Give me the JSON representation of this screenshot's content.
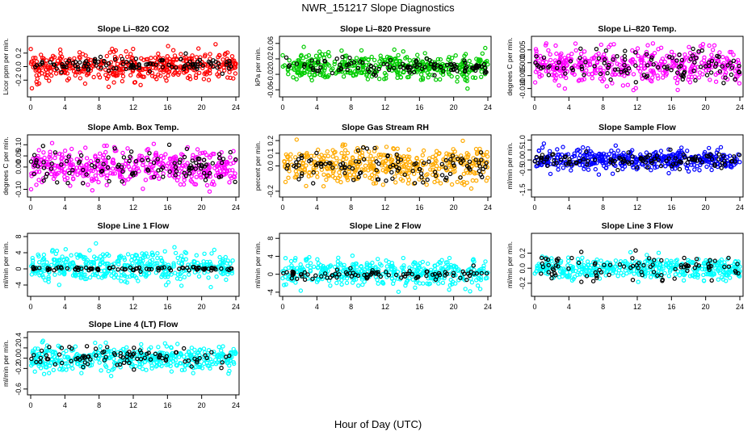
{
  "figure": {
    "title": "NWR_151217  Slope Diagnostics",
    "xlabel": "Hour of Day (UTC)"
  },
  "chart_data": [
    {
      "type": "scatter",
      "title": "Slope Li–820 CO2",
      "ylabel": "Licor ppm per min.",
      "xlim": [
        0,
        24
      ],
      "ylim": [
        -0.4,
        0.4
      ],
      "xticks": [
        0,
        4,
        8,
        12,
        16,
        20,
        24
      ],
      "yticks": [
        -0.2,
        0.0,
        0.2
      ],
      "ytick_labels": [
        "-0.2",
        "0.0",
        "0.2"
      ],
      "series": [
        {
          "color": "#ff0000",
          "seed": 11,
          "count": 430,
          "center": 0.0,
          "spread": 0.11,
          "clip": [
            -0.38,
            0.38
          ]
        },
        {
          "color": "#000000",
          "seed": 12,
          "count": 110,
          "center": 0.02,
          "spread": 0.05,
          "clip": [
            -0.2,
            0.2
          ]
        }
      ]
    },
    {
      "type": "scatter",
      "title": "Slope Li–820 Pressure",
      "ylabel": "kPa per min.",
      "xlim": [
        0,
        24
      ],
      "ylim": [
        -0.07,
        0.07
      ],
      "xticks": [
        0,
        4,
        8,
        12,
        16,
        20,
        24
      ],
      "yticks": [
        -0.06,
        -0.02,
        0.02,
        0.06
      ],
      "ytick_labels": [
        "-0.06",
        "-0.02",
        "0.02",
        "0.06"
      ],
      "series": [
        {
          "color": "#00cc00",
          "seed": 21,
          "count": 430,
          "center": 0.0,
          "spread": 0.017,
          "clip": [
            -0.065,
            0.065
          ]
        },
        {
          "color": "#000000",
          "seed": 22,
          "count": 110,
          "center": 0.0,
          "spread": 0.01,
          "clip": [
            -0.03,
            0.03
          ]
        }
      ]
    },
    {
      "type": "scatter",
      "title": "Slope Li–820 Temp.",
      "ylabel": "degrees C per min.",
      "xlim": [
        0,
        24
      ],
      "ylim": [
        -0.012,
        0.009
      ],
      "xticks": [
        0,
        4,
        8,
        12,
        16,
        20,
        24
      ],
      "yticks": [
        -0.01,
        -0.005,
        0.0,
        0.005
      ],
      "ytick_labels": [
        "-0.010",
        "-0.005",
        "0.000",
        "0.005"
      ],
      "series": [
        {
          "color": "#ff00ff",
          "seed": 31,
          "count": 430,
          "center": -0.001,
          "spread": 0.0035,
          "clip": [
            -0.0115,
            0.0085
          ]
        },
        {
          "color": "#000000",
          "seed": 32,
          "count": 110,
          "center": -0.001,
          "spread": 0.003,
          "clip": [
            -0.009,
            0.006
          ]
        }
      ]
    },
    {
      "type": "scatter",
      "title": "Slope Amb. Box Temp.",
      "ylabel": "degrees C per min.",
      "xlim": [
        0,
        24
      ],
      "ylim": [
        -0.12,
        0.13
      ],
      "xticks": [
        0,
        4,
        8,
        12,
        16,
        20,
        24
      ],
      "yticks": [
        -0.1,
        0.0,
        0.05,
        0.1
      ],
      "ytick_labels": [
        "-0.10",
        "0.00",
        "0.05",
        "0.10"
      ],
      "series": [
        {
          "color": "#ff00ff",
          "seed": 41,
          "count": 430,
          "center": 0.0,
          "spread": 0.04,
          "clip": [
            -0.115,
            0.125
          ]
        },
        {
          "color": "#000000",
          "seed": 42,
          "count": 110,
          "center": 0.0,
          "spread": 0.035,
          "clip": [
            -0.09,
            0.1
          ]
        }
      ]
    },
    {
      "type": "scatter",
      "title": "Slope Gas Stream RH",
      "ylabel": "percent per min.",
      "xlim": [
        0,
        24
      ],
      "ylim": [
        -0.22,
        0.22
      ],
      "xticks": [
        0,
        4,
        8,
        12,
        16,
        20,
        24
      ],
      "yticks": [
        -0.2,
        0.0,
        0.1,
        0.2
      ],
      "ytick_labels": [
        "-0.2",
        "0.0",
        "0.1",
        "0.2"
      ],
      "series": [
        {
          "color": "#ffaa00",
          "seed": 51,
          "count": 430,
          "center": 0.0,
          "spread": 0.07,
          "clip": [
            -0.21,
            0.21
          ]
        },
        {
          "color": "#000000",
          "seed": 52,
          "count": 110,
          "center": 0.0,
          "spread": 0.06,
          "clip": [
            -0.2,
            0.15
          ]
        }
      ]
    },
    {
      "type": "scatter",
      "title": "Slope Sample Flow",
      "ylabel": "ml/min per min.",
      "xlim": [
        0,
        24
      ],
      "ylim": [
        -1.7,
        1.1
      ],
      "xticks": [
        0,
        4,
        8,
        12,
        16,
        20,
        24
      ],
      "yticks": [
        -1.5,
        -0.5,
        0.0,
        0.5,
        1.0
      ],
      "ytick_labels": [
        "-1.5",
        "-0.5",
        "0.0",
        "0.5",
        "1.0"
      ],
      "series": [
        {
          "color": "#0000ff",
          "seed": 61,
          "count": 430,
          "center": 0.0,
          "spread": 0.25,
          "clip": [
            -1.6,
            1.0
          ]
        },
        {
          "color": "#000000",
          "seed": 62,
          "count": 110,
          "center": 0.0,
          "spread": 0.18,
          "clip": [
            -0.6,
            0.6
          ]
        }
      ]
    },
    {
      "type": "scatter",
      "title": "Slope Line 1 Flow",
      "ylabel": "ml/min per min.",
      "xlim": [
        0,
        24
      ],
      "ylim": [
        -6,
        8
      ],
      "xticks": [
        0,
        4,
        8,
        12,
        16,
        20,
        24
      ],
      "yticks": [
        -4,
        0,
        4,
        8
      ],
      "ytick_labels": [
        "-4",
        "0",
        "4",
        "8"
      ],
      "series": [
        {
          "color": "#00ffff",
          "seed": 71,
          "count": 430,
          "center": 0.5,
          "spread": 1.8,
          "clip": [
            -5,
            7.5
          ]
        },
        {
          "color": "#000000",
          "seed": 72,
          "count": 90,
          "center": 0.0,
          "spread": 0.25,
          "clip": [
            -1,
            3
          ]
        }
      ]
    },
    {
      "type": "scatter",
      "title": "Slope Line 2 Flow",
      "ylabel": "ml/min per min.",
      "xlim": [
        0,
        24
      ],
      "ylim": [
        -4.2,
        8.4
      ],
      "xticks": [
        0,
        4,
        8,
        12,
        16,
        20,
        24
      ],
      "yticks": [
        -4,
        0,
        4,
        8
      ],
      "ytick_labels": [
        "-4",
        "0",
        "4",
        "8"
      ],
      "series": [
        {
          "color": "#00ffff",
          "seed": 81,
          "count": 430,
          "center": 0.3,
          "spread": 1.4,
          "clip": [
            -4,
            8
          ]
        },
        {
          "color": "#000000",
          "seed": 82,
          "count": 90,
          "center": 0.0,
          "spread": 0.6,
          "clip": [
            -2,
            2
          ]
        }
      ]
    },
    {
      "type": "scatter",
      "title": "Slope Line 3 Flow",
      "ylabel": "ml/min per min.",
      "xlim": [
        0,
        24
      ],
      "ylim": [
        -0.33,
        0.42
      ],
      "xticks": [
        0,
        4,
        8,
        12,
        16,
        20,
        24
      ],
      "yticks": [
        -0.2,
        0.0,
        0.2
      ],
      "ytick_labels": [
        "-0.2",
        "0.0",
        "0.2"
      ],
      "series": [
        {
          "color": "#00ffff",
          "seed": 91,
          "count": 430,
          "center": 0.0,
          "spread": 0.07,
          "clip": [
            -0.32,
            0.35
          ]
        },
        {
          "color": "#000000",
          "seed": 92,
          "count": 90,
          "center": 0.0,
          "spread": 0.08,
          "clip": [
            -0.22,
            0.25
          ]
        }
      ]
    },
    {
      "type": "scatter",
      "title": "Slope Line 4 (LT) Flow",
      "ylabel": "ml/min per min.",
      "xlim": [
        0,
        24
      ],
      "ylim": [
        -0.65,
        0.45
      ],
      "xticks": [
        0,
        4,
        8,
        12,
        16,
        20,
        24
      ],
      "yticks": [
        -0.6,
        -0.2,
        0.0,
        0.2,
        0.4
      ],
      "ytick_labels": [
        "-0.6",
        "-0.2",
        "0.0",
        "0.2",
        "0.4"
      ],
      "series": [
        {
          "color": "#00ffff",
          "seed": 101,
          "count": 430,
          "center": 0.0,
          "spread": 0.12,
          "clip": [
            -0.62,
            0.42
          ]
        },
        {
          "color": "#000000",
          "seed": 102,
          "count": 90,
          "center": 0.0,
          "spread": 0.12,
          "clip": [
            -0.25,
            0.35
          ]
        }
      ]
    }
  ]
}
